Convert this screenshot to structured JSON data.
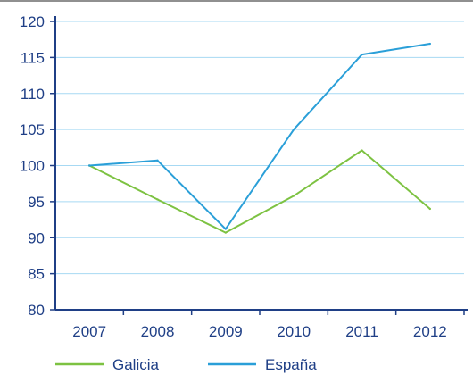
{
  "chart_data": {
    "type": "line",
    "title": "",
    "xlabel": "",
    "ylabel": "",
    "categories": [
      "2007",
      "2008",
      "2009",
      "2010",
      "2011",
      "2012"
    ],
    "ylim": [
      80,
      120
    ],
    "yticks": [
      80,
      85,
      90,
      95,
      100,
      105,
      110,
      115,
      120
    ],
    "grid": true,
    "legend_position": "bottom",
    "series": [
      {
        "name": "Galicia",
        "color": "#7dc242",
        "values": [
          100,
          95.3,
          90.7,
          95.8,
          102.1,
          94.0
        ]
      },
      {
        "name": "España",
        "color": "#2a9fd8",
        "values": [
          100,
          100.7,
          91.2,
          105.0,
          115.4,
          116.9
        ]
      }
    ],
    "colors": {
      "axis": "#1f3f86",
      "grid": "#a7d9f3",
      "text": "#1f3f86"
    }
  }
}
